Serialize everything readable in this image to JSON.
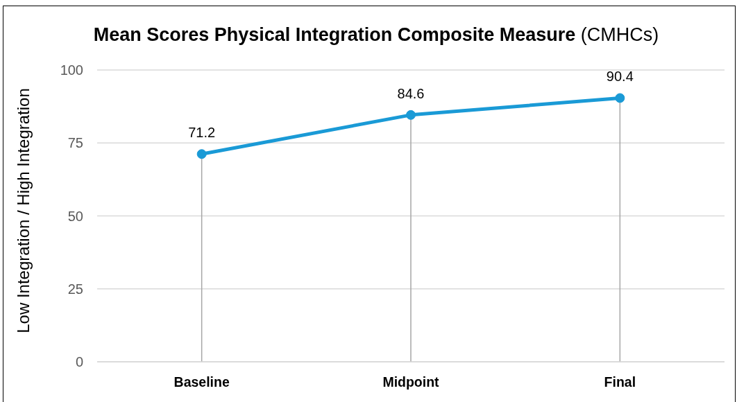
{
  "chart_data": {
    "type": "line",
    "title": "Mean Scores Physical Integration Composite Measure (CMHCs)",
    "ylabel": "Low Integration / High Integration",
    "categories": [
      "Baseline",
      "Midpoint",
      "Final"
    ],
    "series": [
      {
        "color": "#1a9ad6",
        "values": [
          71.2,
          84.6,
          90.4
        ]
      }
    ],
    "ylim": [
      0,
      100
    ],
    "yticks": [
      0,
      25,
      50,
      75,
      100
    ],
    "grid": true,
    "data_labels": true,
    "marker": "circle",
    "line_style": "solid"
  }
}
